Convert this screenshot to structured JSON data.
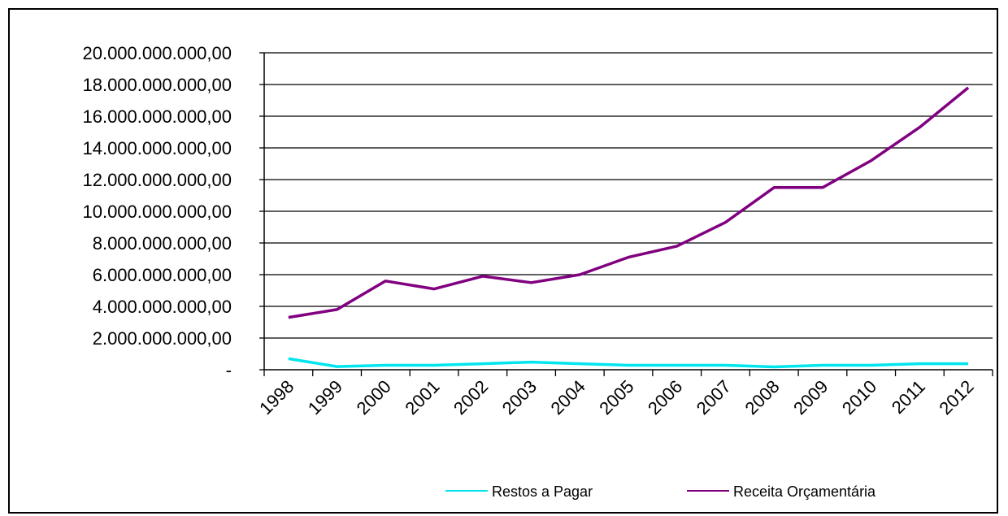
{
  "chart_data": {
    "type": "line",
    "title": "",
    "xlabel": "",
    "ylabel": "",
    "categories": [
      "1998",
      "1999",
      "2000",
      "2001",
      "2002",
      "2003",
      "2004",
      "2005",
      "2006",
      "2007",
      "2008",
      "2009",
      "2010",
      "2011",
      "2012"
    ],
    "ylim": [
      0,
      20000000000
    ],
    "y_ticks": [
      0,
      2000000000,
      4000000000,
      6000000000,
      8000000000,
      10000000000,
      12000000000,
      14000000000,
      16000000000,
      18000000000,
      20000000000
    ],
    "y_tick_labels": [
      "-",
      "2.000.000.000,00",
      "4.000.000.000,00",
      "6.000.000.000,00",
      "8.000.000.000,00",
      "10.000.000.000,00",
      "12.000.000.000,00",
      "14.000.000.000,00",
      "16.000.000.000,00",
      "18.000.000.000,00",
      "20.000.000.000,00"
    ],
    "grid": true,
    "legend_position": "bottom",
    "series": [
      {
        "name": "Restos a Pagar",
        "color": "#00e5ee",
        "values": [
          700000000,
          200000000,
          280000000,
          280000000,
          380000000,
          480000000,
          380000000,
          280000000,
          280000000,
          280000000,
          180000000,
          280000000,
          280000000,
          380000000,
          380000000
        ]
      },
      {
        "name": "Receita Orçamentária",
        "color": "#800080",
        "values": [
          3300000000,
          3800000000,
          5600000000,
          5100000000,
          5900000000,
          5500000000,
          6000000000,
          7100000000,
          7800000000,
          9300000000,
          11500000000,
          11500000000,
          13200000000,
          15300000000,
          17800000000
        ]
      }
    ]
  }
}
